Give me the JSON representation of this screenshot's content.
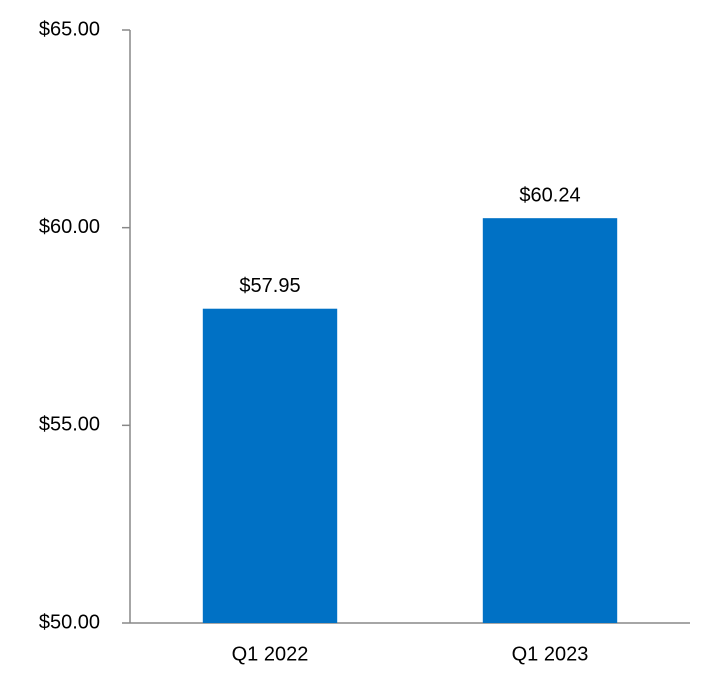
{
  "chart_data": {
    "type": "bar",
    "categories": [
      "Q1 2022",
      "Q1 2023"
    ],
    "values": [
      57.95,
      60.24
    ],
    "value_labels": [
      "$57.95",
      "$60.24"
    ],
    "color": "#0071c5",
    "ylim": [
      50,
      65
    ],
    "yticks": [
      {
        "value": 50,
        "label": "$50.00"
      },
      {
        "value": 55,
        "label": "$55.00"
      },
      {
        "value": 60,
        "label": "$60.00"
      },
      {
        "value": 65,
        "label": "$65.00"
      }
    ],
    "grid": false
  }
}
